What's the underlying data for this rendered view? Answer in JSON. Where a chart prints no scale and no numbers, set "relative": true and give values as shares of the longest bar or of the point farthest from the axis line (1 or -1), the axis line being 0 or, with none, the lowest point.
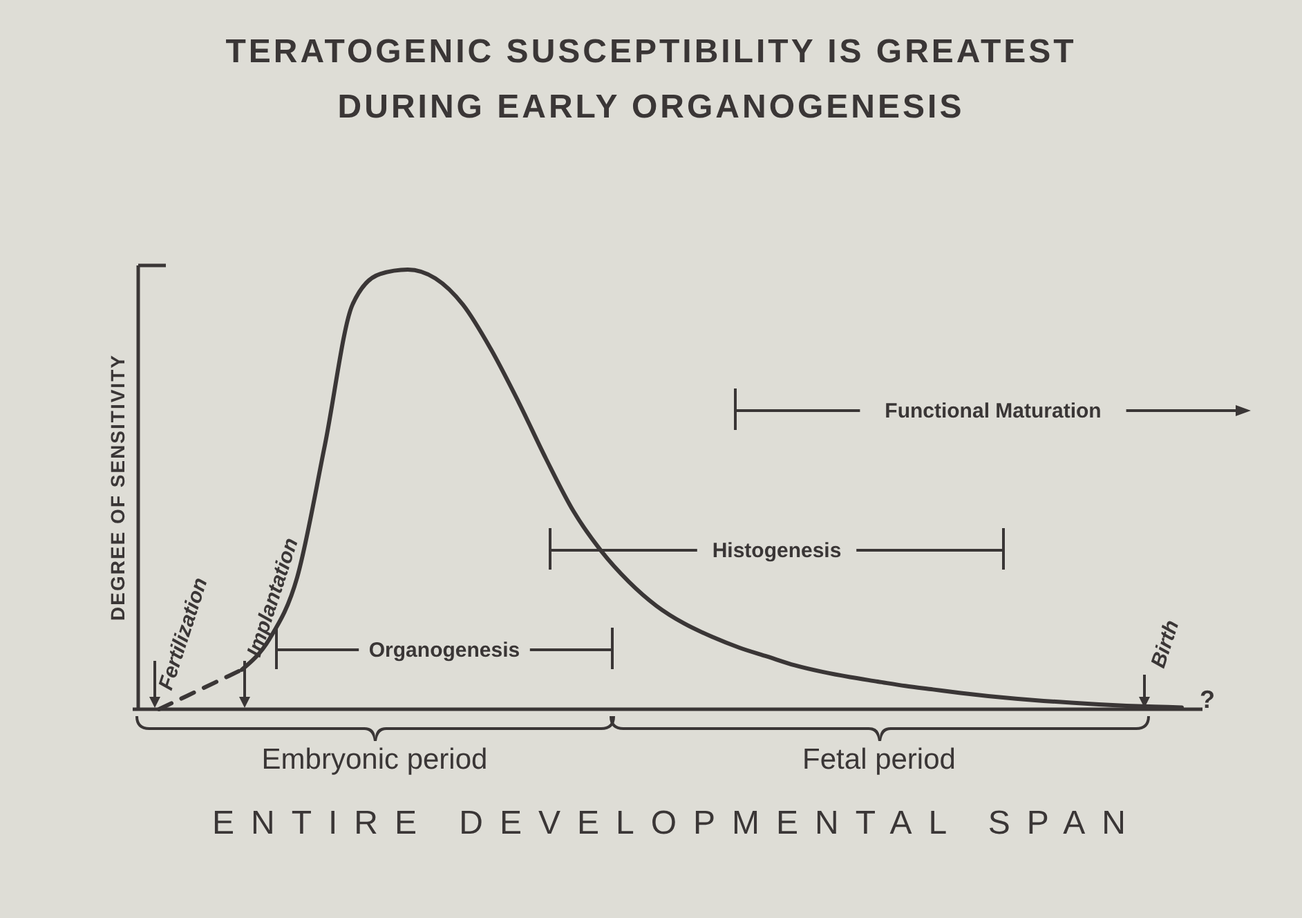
{
  "chart_data": {
    "type": "line",
    "title": "TERATOGENIC SUSCEPTIBILITY IS GREATEST DURING EARLY ORGANOGENESIS",
    "xlabel": "ENTIRE DEVELOPMENTAL SPAN",
    "ylabel": "DEGREE OF SENSITIVITY",
    "relative": true,
    "marker": "none",
    "categories": [
      null,
      null,
      null,
      null,
      null,
      null,
      null,
      null,
      null,
      null,
      null,
      null,
      null,
      null,
      null,
      null,
      null,
      null,
      null,
      null,
      null,
      null,
      null,
      null,
      null,
      null,
      null,
      null,
      null,
      null,
      null,
      null,
      null,
      null,
      null,
      null,
      null,
      null
    ],
    "series": [
      {
        "color": "#3a3636",
        "line_style": "dashed",
        "values": [
          0.0,
          0.03,
          0.06,
          0.09,
          null,
          null,
          null,
          null,
          null,
          null,
          null,
          null,
          null,
          null,
          null,
          null,
          null,
          null,
          null,
          null,
          null,
          null,
          null,
          null,
          null,
          null,
          null,
          null,
          null,
          null,
          null,
          null,
          null,
          null,
          null,
          null,
          null,
          null
        ]
      },
      {
        "color": "#3a3636",
        "line_style": "solid",
        "values": [
          null,
          null,
          null,
          0.09,
          0.16,
          0.3,
          0.6,
          0.92,
          0.99,
          1,
          0.98,
          0.92,
          0.82,
          0.7,
          0.57,
          0.45,
          0.36,
          0.29,
          0.235,
          0.195,
          0.165,
          0.14,
          0.12,
          0.1,
          0.085,
          0.073,
          0.063,
          0.053,
          0.045,
          0.037,
          0.03,
          0.024,
          0.019,
          0.015,
          0.011,
          0.008,
          0.006,
          0.004
        ]
      }
    ],
    "annotations": [
      "Fertilization",
      "Implantation",
      "Organogenesis",
      "Histogenesis",
      "Functional Maturation",
      "Birth",
      "?",
      "Embryonic period",
      "Fetal period"
    ]
  }
}
